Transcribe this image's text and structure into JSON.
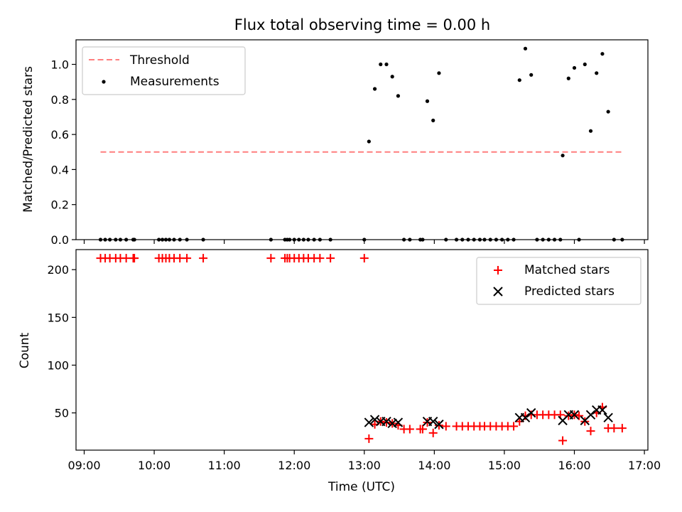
{
  "chart_data": [
    {
      "type": "scatter",
      "title": "Flux total observing time = 0.00 h",
      "xlabel": "",
      "ylabel": "Matched/Predicted stars",
      "xlim": [
        "08:53",
        "17:03"
      ],
      "ylim": [
        0,
        1.14
      ],
      "y_ticks": [
        "0.0",
        "0.2",
        "0.4",
        "0.6",
        "0.8",
        "1.0"
      ],
      "legend_position": "upper left",
      "threshold": {
        "name": "Threshold",
        "value": 0.5,
        "x_range": [
          "09:14",
          "16:42"
        ],
        "color": "#ff7f7f",
        "style": "dashed"
      },
      "series": [
        {
          "name": "Measurements",
          "color": "#000000",
          "points": [
            [
              "09:14",
              0
            ],
            [
              "09:18",
              0
            ],
            [
              "09:22",
              0
            ],
            [
              "09:27",
              0
            ],
            [
              "09:31",
              0
            ],
            [
              "09:36",
              0
            ],
            [
              "09:42",
              0
            ],
            [
              "09:43",
              0
            ],
            [
              "10:04",
              0
            ],
            [
              "10:07",
              0
            ],
            [
              "10:10",
              0
            ],
            [
              "10:13",
              0
            ],
            [
              "10:17",
              0
            ],
            [
              "10:22",
              0
            ],
            [
              "10:28",
              0
            ],
            [
              "10:42",
              0
            ],
            [
              "11:40",
              0
            ],
            [
              "11:52",
              0
            ],
            [
              "11:54",
              0
            ],
            [
              "11:56",
              0
            ],
            [
              "12:00",
              0
            ],
            [
              "12:04",
              0
            ],
            [
              "12:08",
              0
            ],
            [
              "12:12",
              0
            ],
            [
              "12:17",
              0
            ],
            [
              "12:22",
              0
            ],
            [
              "12:31",
              0
            ],
            [
              "13:00",
              0
            ],
            [
              "13:04",
              0.56
            ],
            [
              "13:09",
              0.86
            ],
            [
              "13:14",
              1.0
            ],
            [
              "13:19",
              1.0
            ],
            [
              "13:24",
              0.93
            ],
            [
              "13:29",
              0.82
            ],
            [
              "13:34",
              0
            ],
            [
              "13:39",
              0
            ],
            [
              "13:48",
              0
            ],
            [
              "13:50",
              0
            ],
            [
              "13:54",
              0.79
            ],
            [
              "13:59",
              0.68
            ],
            [
              "14:04",
              0.95
            ],
            [
              "14:10",
              0
            ],
            [
              "14:19",
              0
            ],
            [
              "14:24",
              0
            ],
            [
              "14:29",
              0
            ],
            [
              "14:34",
              0
            ],
            [
              "14:39",
              0
            ],
            [
              "14:43",
              0
            ],
            [
              "14:48",
              0
            ],
            [
              "14:53",
              0
            ],
            [
              "14:58",
              0
            ],
            [
              "15:03",
              0
            ],
            [
              "15:08",
              0
            ],
            [
              "15:13",
              0.91
            ],
            [
              "15:18",
              1.09
            ],
            [
              "15:23",
              0.94
            ],
            [
              "15:28",
              0
            ],
            [
              "15:33",
              0
            ],
            [
              "15:38",
              0
            ],
            [
              "15:43",
              0
            ],
            [
              "15:48",
              0
            ],
            [
              "15:50",
              0.48
            ],
            [
              "15:55",
              0.92
            ],
            [
              "16:00",
              0.98
            ],
            [
              "16:04",
              0
            ],
            [
              "16:09",
              1.0
            ],
            [
              "16:14",
              0.62
            ],
            [
              "16:19",
              0.95
            ],
            [
              "16:24",
              1.06
            ],
            [
              "16:29",
              0.73
            ],
            [
              "16:34",
              0
            ],
            [
              "16:41",
              0
            ]
          ]
        }
      ]
    },
    {
      "type": "scatter",
      "title": "",
      "xlabel": "Time (UTC)",
      "ylabel": "Count",
      "xlim": [
        "08:53",
        "17:03"
      ],
      "ylim": [
        11,
        221
      ],
      "x_ticks": [
        "09:00",
        "10:00",
        "11:00",
        "12:00",
        "13:00",
        "14:00",
        "15:00",
        "16:00",
        "17:00"
      ],
      "y_ticks": [
        "50",
        "100",
        "150",
        "200"
      ],
      "legend_position": "upper right",
      "series": [
        {
          "name": "Matched stars",
          "marker": "plus",
          "color": "#ff0000",
          "points": [
            [
              "09:14",
              212
            ],
            [
              "09:18",
              212
            ],
            [
              "09:22",
              212
            ],
            [
              "09:27",
              212
            ],
            [
              "09:31",
              212
            ],
            [
              "09:36",
              212
            ],
            [
              "09:42",
              212
            ],
            [
              "09:43",
              212
            ],
            [
              "10:04",
              212
            ],
            [
              "10:07",
              212
            ],
            [
              "10:10",
              212
            ],
            [
              "10:13",
              212
            ],
            [
              "10:17",
              212
            ],
            [
              "10:22",
              212
            ],
            [
              "10:28",
              212
            ],
            [
              "10:42",
              212
            ],
            [
              "11:40",
              212
            ],
            [
              "11:52",
              212
            ],
            [
              "11:54",
              212
            ],
            [
              "11:56",
              212
            ],
            [
              "12:00",
              212
            ],
            [
              "12:04",
              212
            ],
            [
              "12:08",
              212
            ],
            [
              "12:12",
              212
            ],
            [
              "12:17",
              212
            ],
            [
              "12:22",
              212
            ],
            [
              "12:31",
              212
            ],
            [
              "13:00",
              212
            ],
            [
              "13:04",
              23
            ],
            [
              "13:09",
              38
            ],
            [
              "13:14",
              41
            ],
            [
              "13:19",
              40
            ],
            [
              "13:24",
              39
            ],
            [
              "13:29",
              37
            ],
            [
              "13:34",
              33
            ],
            [
              "13:39",
              33
            ],
            [
              "13:48",
              33
            ],
            [
              "13:50",
              33
            ],
            [
              "13:54",
              40
            ],
            [
              "13:59",
              29
            ],
            [
              "14:04",
              37
            ],
            [
              "14:10",
              36
            ],
            [
              "14:19",
              36
            ],
            [
              "14:24",
              36
            ],
            [
              "14:29",
              36
            ],
            [
              "14:34",
              36
            ],
            [
              "14:39",
              36
            ],
            [
              "14:43",
              36
            ],
            [
              "14:48",
              36
            ],
            [
              "14:53",
              36
            ],
            [
              "14:58",
              36
            ],
            [
              "15:03",
              36
            ],
            [
              "15:08",
              36
            ],
            [
              "15:13",
              41
            ],
            [
              "15:18",
              47
            ],
            [
              "15:23",
              48
            ],
            [
              "15:28",
              48
            ],
            [
              "15:33",
              48
            ],
            [
              "15:38",
              48
            ],
            [
              "15:43",
              48
            ],
            [
              "15:48",
              48
            ],
            [
              "15:50",
              21
            ],
            [
              "15:55",
              47
            ],
            [
              "16:00",
              48
            ],
            [
              "16:04",
              47
            ],
            [
              "16:09",
              41
            ],
            [
              "16:14",
              31
            ],
            [
              "16:19",
              50
            ],
            [
              "16:24",
              56
            ],
            [
              "16:29",
              34
            ],
            [
              "16:34",
              34
            ],
            [
              "16:41",
              34
            ]
          ]
        },
        {
          "name": "Predicted stars",
          "marker": "x",
          "color": "#000000",
          "points": [
            [
              "13:04",
              40
            ],
            [
              "13:09",
              43
            ],
            [
              "13:14",
              41
            ],
            [
              "13:19",
              41
            ],
            [
              "13:24",
              39
            ],
            [
              "13:29",
              40
            ],
            [
              "13:54",
              41
            ],
            [
              "13:59",
              41
            ],
            [
              "14:04",
              38
            ],
            [
              "15:13",
              45
            ],
            [
              "15:18",
              45
            ],
            [
              "15:23",
              50
            ],
            [
              "15:50",
              42
            ],
            [
              "15:55",
              48
            ],
            [
              "16:00",
              48
            ],
            [
              "16:09",
              42
            ],
            [
              "16:14",
              48
            ],
            [
              "16:19",
              53
            ],
            [
              "16:24",
              53
            ],
            [
              "16:29",
              45
            ]
          ]
        }
      ]
    }
  ]
}
